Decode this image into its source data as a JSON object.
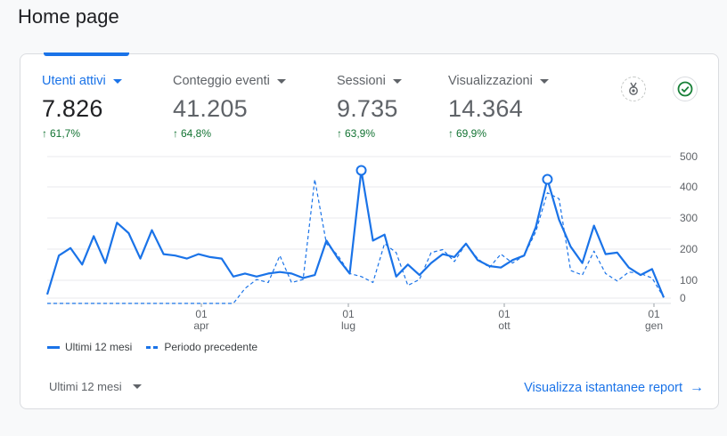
{
  "page": {
    "title": "Home page"
  },
  "metrics": [
    {
      "label": "Utenti attivi",
      "value": "7.826",
      "change": "61,7%"
    },
    {
      "label": "Conteggio eventi",
      "value": "41.205",
      "change": "64,8%"
    },
    {
      "label": "Sessioni",
      "value": "9.735",
      "change": "63,9%"
    },
    {
      "label": "Visualizzazioni",
      "value": "14.364",
      "change": "69,9%"
    }
  ],
  "icons": {
    "insights": "insights-medal-icon",
    "status": "check-circle-icon",
    "arrow": "arrow-right-icon"
  },
  "colors": {
    "accent": "#1a73e8",
    "positive": "#137333"
  },
  "chart_data": {
    "type": "line",
    "ylim": [
      0,
      500
    ],
    "y_ticks": [
      "500",
      "400",
      "300",
      "200",
      "100",
      "0"
    ],
    "x_ticks": [
      {
        "day": "01",
        "month": "apr"
      },
      {
        "day": "01",
        "month": "lug"
      },
      {
        "day": "01",
        "month": "ott"
      },
      {
        "day": "01",
        "month": "gen"
      }
    ],
    "series": [
      {
        "name": "Ultimi 12 mesi",
        "style": "solid",
        "values": [
          30,
          160,
          185,
          130,
          225,
          135,
          270,
          235,
          150,
          245,
          165,
          160,
          150,
          165,
          155,
          150,
          90,
          100,
          90,
          100,
          105,
          100,
          85,
          95,
          210,
          150,
          100,
          445,
          210,
          230,
          90,
          130,
          95,
          135,
          165,
          155,
          200,
          145,
          125,
          120,
          145,
          160,
          255,
          415,
          280,
          190,
          135,
          260,
          165,
          170,
          120,
          95,
          115,
          20
        ]
      },
      {
        "name": "Periodo precedente",
        "style": "dashed",
        "values": [
          0,
          0,
          0,
          0,
          0,
          0,
          0,
          0,
          0,
          0,
          0,
          0,
          0,
          0,
          0,
          0,
          0,
          50,
          80,
          70,
          160,
          70,
          80,
          415,
          200,
          160,
          100,
          90,
          70,
          200,
          170,
          60,
          80,
          170,
          180,
          140,
          200,
          150,
          120,
          165,
          135,
          160,
          240,
          370,
          350,
          110,
          95,
          175,
          100,
          75,
          105,
          100,
          85,
          20
        ]
      }
    ],
    "markers": [
      27,
      43
    ]
  },
  "legend": {
    "current": "Ultimi 12 mesi",
    "previous": "Periodo precedente"
  },
  "footer": {
    "range_label": "Ultimi 12 mesi",
    "report_link": "Visualizza istantanee report"
  }
}
